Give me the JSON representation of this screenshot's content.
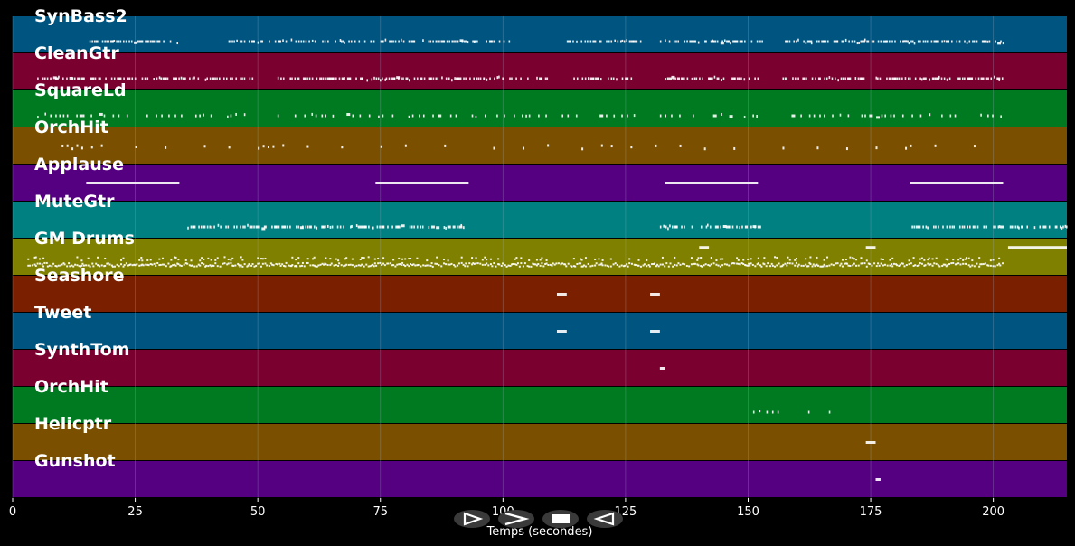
{
  "axis": {
    "xlabel": "Temps (secondes)",
    "xlim": [
      0,
      215
    ],
    "ticks": [
      0,
      25,
      50,
      75,
      100,
      125,
      150,
      175,
      200
    ],
    "tick_labels": [
      "0",
      "25",
      "50",
      "75",
      "100",
      "125",
      "150",
      "175",
      "200"
    ]
  },
  "playback_controls": [
    {
      "name": "play-button",
      "icon": "play-icon"
    },
    {
      "name": "fast-forward-button",
      "icon": "fast-forward-icon"
    },
    {
      "name": "stop-button",
      "icon": "stop-icon"
    },
    {
      "name": "rewind-button",
      "icon": "rewind-icon"
    }
  ],
  "colors": {
    "background": "#000000",
    "grid": "#9aa7c0",
    "notes": "#ffffff",
    "track_cycle": [
      "#005580",
      "#7a0030",
      "#007a20",
      "#7a5000",
      "#550080",
      "#008080",
      "#808000",
      "#7a2000"
    ]
  },
  "tracks": [
    {
      "label": "SynBass2",
      "color": "#005580",
      "pattern": "dense",
      "segments": [
        [
          15,
          34
        ],
        [
          44,
          95
        ],
        [
          96,
          102
        ],
        [
          113,
          128
        ],
        [
          132,
          153
        ],
        [
          157,
          202
        ]
      ]
    },
    {
      "label": "CleanGtr",
      "color": "#7a0030",
      "pattern": "dense",
      "segments": [
        [
          5,
          49
        ],
        [
          54,
          96
        ],
        [
          96,
          109
        ],
        [
          114,
          127
        ],
        [
          133,
          152
        ],
        [
          157,
          174
        ],
        [
          176,
          184
        ],
        [
          185,
          202
        ]
      ]
    },
    {
      "label": "SquareLd",
      "color": "#007a20",
      "pattern": "sparse",
      "segments": [
        [
          5,
          49
        ],
        [
          54,
          109
        ],
        [
          112,
          128
        ],
        [
          132,
          152
        ],
        [
          157,
          202
        ]
      ]
    },
    {
      "label": "OrchHit",
      "color": "#7a5000",
      "pattern": "hits",
      "times": [
        10,
        11,
        12,
        13,
        14,
        16,
        18,
        25,
        31,
        39,
        44,
        50,
        51,
        52,
        53,
        55,
        60,
        67,
        75,
        80,
        88,
        98,
        104,
        109,
        116,
        120,
        122,
        126,
        131,
        136,
        141,
        147,
        157,
        164,
        170,
        176,
        182,
        183,
        188,
        196
      ]
    },
    {
      "label": "Applause",
      "color": "#550080",
      "pattern": "long",
      "segments": [
        [
          15,
          34
        ],
        [
          74,
          93
        ],
        [
          133,
          152
        ],
        [
          183,
          202
        ]
      ]
    },
    {
      "label": "MuteGtr",
      "color": "#008080",
      "pattern": "dense",
      "segments": [
        [
          35,
          92
        ],
        [
          132,
          152
        ],
        [
          183,
          215
        ]
      ]
    },
    {
      "label": "GM Drums",
      "color": "#808000",
      "pattern": "drums",
      "segments": [
        [
          3,
          202
        ]
      ],
      "extras": [
        [
          140,
          142
        ],
        [
          174,
          176
        ],
        [
          203,
          215
        ]
      ]
    },
    {
      "label": "Seashore",
      "color": "#7a2000",
      "pattern": "long",
      "segments": [
        [
          111,
          113
        ],
        [
          130,
          132
        ]
      ]
    },
    {
      "label": "Tweet",
      "color": "#005580",
      "pattern": "long",
      "segments": [
        [
          111,
          113
        ],
        [
          130,
          132
        ]
      ]
    },
    {
      "label": "SynthTom",
      "color": "#7a0030",
      "pattern": "long",
      "segments": [
        [
          132,
          133
        ]
      ]
    },
    {
      "label": "OrchHit",
      "color": "#007a20",
      "pattern": "sparse",
      "segments": [
        [
          151,
          157
        ],
        [
          161,
          167
        ]
      ]
    },
    {
      "label": "Helicptr",
      "color": "#7a5000",
      "pattern": "long",
      "segments": [
        [
          174,
          176
        ]
      ]
    },
    {
      "label": "Gunshot",
      "color": "#550080",
      "pattern": "long",
      "segments": [
        [
          176,
          177
        ]
      ]
    }
  ]
}
